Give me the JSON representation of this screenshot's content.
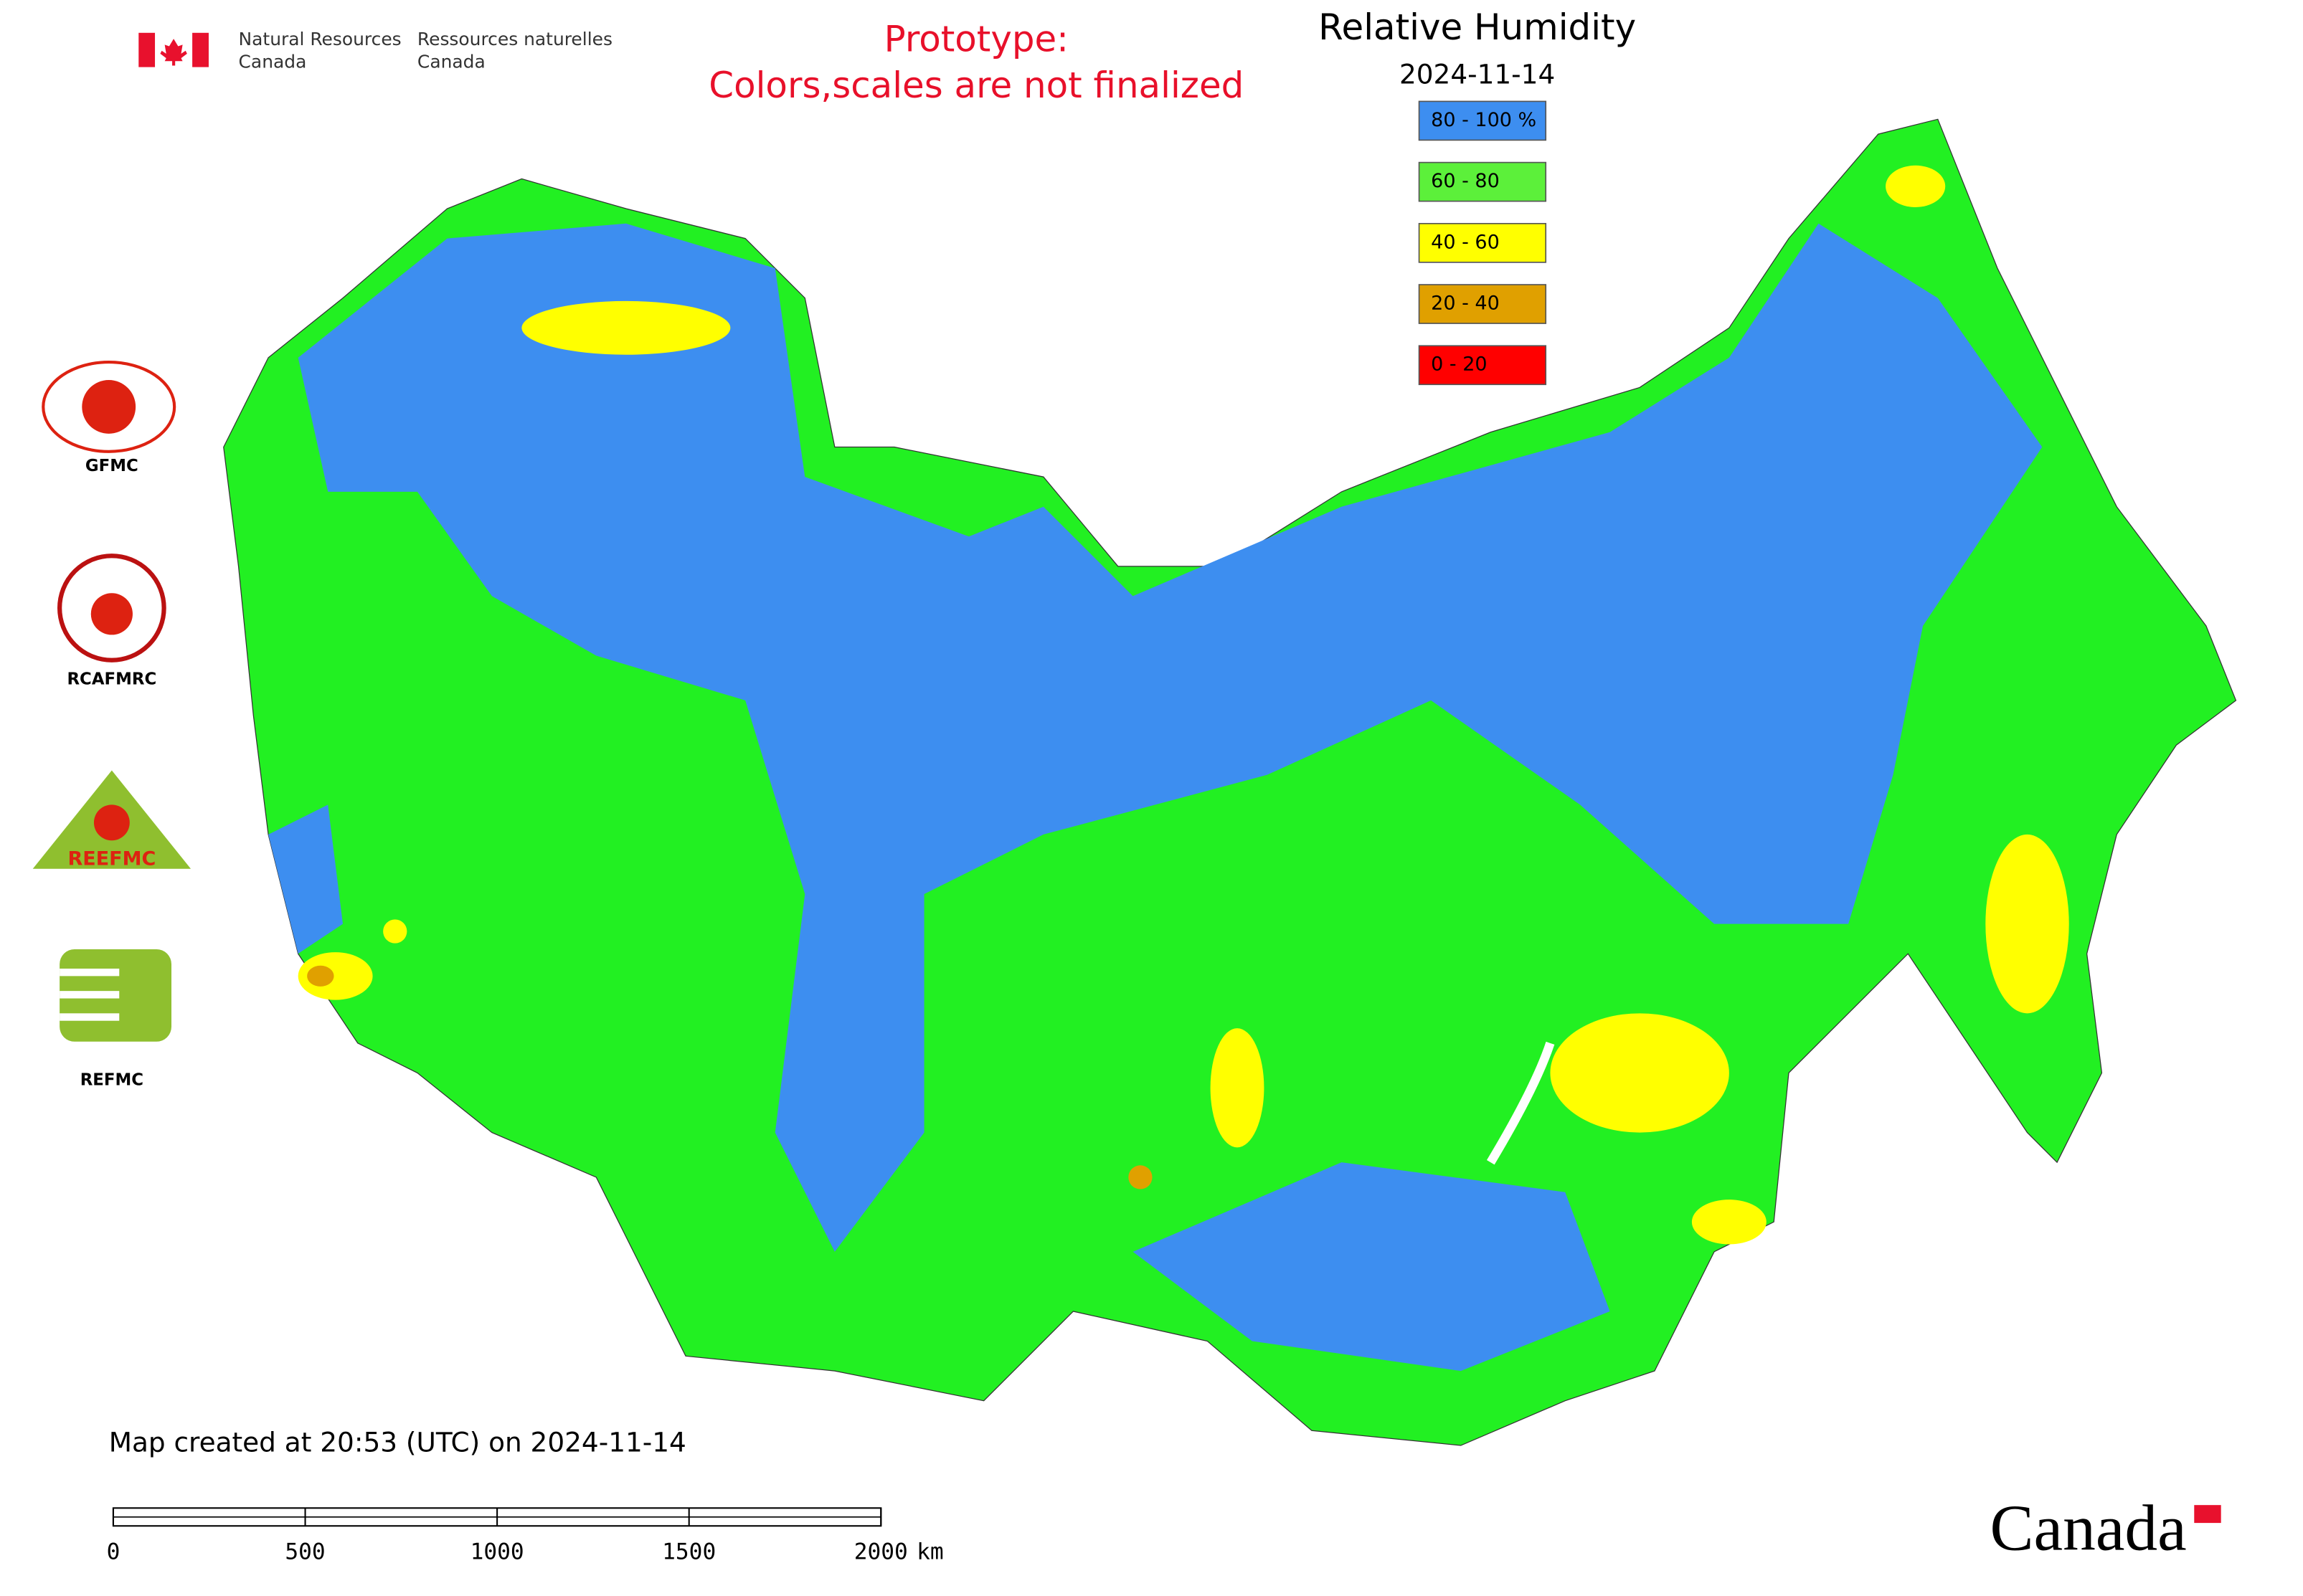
{
  "header": {
    "agency_en": [
      "Natural Resources",
      "Canada"
    ],
    "agency_fr": [
      "Ressources naturelles",
      "Canada"
    ],
    "notice": [
      "Prototype:",
      "Colors,scales are not finalized"
    ]
  },
  "map": {
    "title": "Relative Humidity",
    "date": "2024-11-14",
    "legend": [
      {
        "label": "80 - 100 %",
        "color": "#3d8ef0"
      },
      {
        "label": "60 - 80",
        "color": "#5cf03a"
      },
      {
        "label": "40 - 60",
        "color": "#ffff00"
      },
      {
        "label": "20 - 40",
        "color": "#e0a000"
      },
      {
        "label": "0 - 20",
        "color": "#ff0000"
      }
    ],
    "created": "Map created at 20:53 (UTC) on 2024-11-14",
    "scale_bar": {
      "ticks": [
        0,
        500,
        1000,
        1500,
        2000
      ],
      "unit": "km"
    }
  },
  "logos": [
    "GFMC",
    "RCAFMRC",
    "REEFMC",
    "REFMC"
  ],
  "wordmark": "Canada"
}
